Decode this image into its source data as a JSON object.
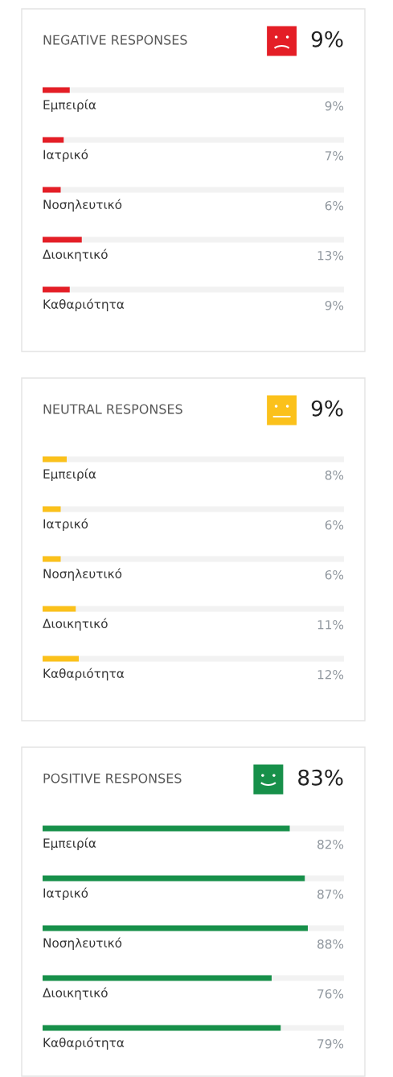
{
  "chart_data": [
    {
      "type": "bar",
      "orientation": "horizontal",
      "title": "NEGATIVE RESPONSES",
      "annotations": [
        "9%"
      ],
      "categories": [
        "Εμπειρία",
        "Ιατρικό",
        "Νοσηλευτικό",
        "Διοικητικό",
        "Καθαριότητα"
      ],
      "series": [
        {
          "color": "#e41e26",
          "values": [
            9,
            7,
            6,
            13,
            9
          ],
          "value_labels": [
            "9%",
            "7%",
            "6%",
            "13%",
            "9%"
          ]
        }
      ],
      "xlim": [
        0,
        100
      ],
      "grid": "y",
      "tick_labels": "y"
    },
    {
      "type": "bar",
      "orientation": "horizontal",
      "title": "NEUTRAL RESPONSES",
      "annotations": [
        "9%"
      ],
      "categories": [
        "Εμπειρία",
        "Ιατρικό",
        "Νοσηλευτικό",
        "Διοικητικό",
        "Καθαριότητα"
      ],
      "series": [
        {
          "color": "#fbc11b",
          "values": [
            8,
            6,
            6,
            11,
            12
          ],
          "value_labels": [
            "8%",
            "6%",
            "6%",
            "11%",
            "12%"
          ]
        }
      ],
      "xlim": [
        0,
        100
      ],
      "grid": "y",
      "tick_labels": "y"
    },
    {
      "type": "bar",
      "orientation": "horizontal",
      "title": "POSITIVE RESPONSES",
      "annotations": [
        "83%"
      ],
      "categories": [
        "Εμπειρία",
        "Ιατρικό",
        "Νοσηλευτικό",
        "Διοικητικό",
        "Καθαριότητα"
      ],
      "series": [
        {
          "color": "#17904a",
          "values": [
            82,
            87,
            88,
            76,
            79
          ],
          "value_labels": [
            "82%",
            "87%",
            "88%",
            "76%",
            "79%"
          ]
        }
      ],
      "xlim": [
        0,
        100
      ],
      "grid": "y",
      "tick_labels": "y"
    }
  ]
}
